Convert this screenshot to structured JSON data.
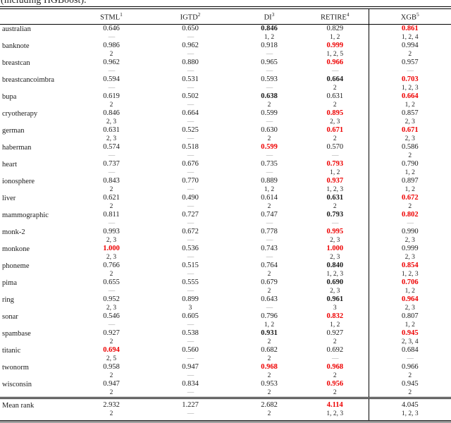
{
  "caption": "(including HGBoost).",
  "colors": {
    "highlight_red": "#ee0000",
    "dash_gray": "#999999"
  },
  "columns": [
    {
      "label": "STML",
      "sup": "1"
    },
    {
      "label": "IGTD",
      "sup": "2"
    },
    {
      "label": "DI",
      "sup": "3"
    },
    {
      "label": "RETIRE",
      "sup": "4"
    },
    {
      "label": "XGB",
      "sup": "5"
    }
  ],
  "rows": [
    {
      "name": "australian",
      "cells": [
        {
          "v": "0.646",
          "a": "—",
          "s": "n"
        },
        {
          "v": "0.650",
          "a": "—",
          "s": "n"
        },
        {
          "v": "0.846",
          "a": "1, 2",
          "s": "b"
        },
        {
          "v": "0.829",
          "a": "1, 2",
          "s": "n"
        },
        {
          "v": "0.861",
          "a": "1, 2, 4",
          "s": "r"
        }
      ]
    },
    {
      "name": "banknote",
      "cells": [
        {
          "v": "0.986",
          "a": "2",
          "s": "n"
        },
        {
          "v": "0.962",
          "a": "—",
          "s": "n"
        },
        {
          "v": "0.918",
          "a": "—",
          "s": "n"
        },
        {
          "v": "0.999",
          "a": "1, 2, 5",
          "s": "r"
        },
        {
          "v": "0.994",
          "a": "2",
          "s": "n"
        }
      ]
    },
    {
      "name": "breastcan",
      "cells": [
        {
          "v": "0.962",
          "a": "—",
          "s": "n"
        },
        {
          "v": "0.880",
          "a": "—",
          "s": "n"
        },
        {
          "v": "0.965",
          "a": "—",
          "s": "n"
        },
        {
          "v": "0.966",
          "a": "—",
          "s": "r"
        },
        {
          "v": "0.957",
          "a": "—",
          "s": "n"
        }
      ]
    },
    {
      "name": "breastcancoimbra",
      "cells": [
        {
          "v": "0.594",
          "a": "—",
          "s": "n"
        },
        {
          "v": "0.531",
          "a": "—",
          "s": "n"
        },
        {
          "v": "0.593",
          "a": "—",
          "s": "n"
        },
        {
          "v": "0.664",
          "a": "2",
          "s": "b"
        },
        {
          "v": "0.703",
          "a": "1, 2, 3",
          "s": "r"
        }
      ]
    },
    {
      "name": "bupa",
      "cells": [
        {
          "v": "0.619",
          "a": "2",
          "s": "n"
        },
        {
          "v": "0.502",
          "a": "—",
          "s": "n"
        },
        {
          "v": "0.638",
          "a": "2",
          "s": "b"
        },
        {
          "v": "0.631",
          "a": "2",
          "s": "n"
        },
        {
          "v": "0.664",
          "a": "1, 2",
          "s": "r"
        }
      ]
    },
    {
      "name": "cryotherapy",
      "cells": [
        {
          "v": "0.846",
          "a": "2, 3",
          "s": "n"
        },
        {
          "v": "0.664",
          "a": "—",
          "s": "n"
        },
        {
          "v": "0.599",
          "a": "—",
          "s": "n"
        },
        {
          "v": "0.895",
          "a": "2, 3",
          "s": "r"
        },
        {
          "v": "0.857",
          "a": "2, 3",
          "s": "n"
        }
      ]
    },
    {
      "name": "german",
      "cells": [
        {
          "v": "0.631",
          "a": "2, 3",
          "s": "n"
        },
        {
          "v": "0.525",
          "a": "—",
          "s": "n"
        },
        {
          "v": "0.630",
          "a": "2",
          "s": "n"
        },
        {
          "v": "0.671",
          "a": "2",
          "s": "r"
        },
        {
          "v": "0.671",
          "a": "2, 3",
          "s": "r"
        }
      ]
    },
    {
      "name": "haberman",
      "cells": [
        {
          "v": "0.574",
          "a": "—",
          "s": "n"
        },
        {
          "v": "0.518",
          "a": "—",
          "s": "n"
        },
        {
          "v": "0.599",
          "a": "—",
          "s": "r"
        },
        {
          "v": "0.570",
          "a": "—",
          "s": "n"
        },
        {
          "v": "0.586",
          "a": "2",
          "s": "n"
        }
      ]
    },
    {
      "name": "heart",
      "cells": [
        {
          "v": "0.737",
          "a": "—",
          "s": "n"
        },
        {
          "v": "0.676",
          "a": "—",
          "s": "n"
        },
        {
          "v": "0.735",
          "a": "—",
          "s": "n"
        },
        {
          "v": "0.793",
          "a": "1, 2",
          "s": "r"
        },
        {
          "v": "0.790",
          "a": "1, 2",
          "s": "n"
        }
      ]
    },
    {
      "name": "ionosphere",
      "cells": [
        {
          "v": "0.843",
          "a": "2",
          "s": "n"
        },
        {
          "v": "0.770",
          "a": "—",
          "s": "n"
        },
        {
          "v": "0.889",
          "a": "1, 2",
          "s": "n"
        },
        {
          "v": "0.937",
          "a": "1, 2, 3",
          "s": "r"
        },
        {
          "v": "0.897",
          "a": "1, 2",
          "s": "n"
        }
      ]
    },
    {
      "name": "liver",
      "cells": [
        {
          "v": "0.621",
          "a": "2",
          "s": "n"
        },
        {
          "v": "0.490",
          "a": "—",
          "s": "n"
        },
        {
          "v": "0.614",
          "a": "2",
          "s": "n"
        },
        {
          "v": "0.631",
          "a": "2",
          "s": "b"
        },
        {
          "v": "0.672",
          "a": "2",
          "s": "r"
        }
      ]
    },
    {
      "name": "mammographic",
      "cells": [
        {
          "v": "0.811",
          "a": "—",
          "s": "n"
        },
        {
          "v": "0.727",
          "a": "—",
          "s": "n"
        },
        {
          "v": "0.747",
          "a": "—",
          "s": "n"
        },
        {
          "v": "0.793",
          "a": "—",
          "s": "b"
        },
        {
          "v": "0.802",
          "a": "—",
          "s": "r"
        }
      ]
    },
    {
      "name": "monk-2",
      "cells": [
        {
          "v": "0.993",
          "a": "2, 3",
          "s": "n"
        },
        {
          "v": "0.672",
          "a": "—",
          "s": "n"
        },
        {
          "v": "0.778",
          "a": "—",
          "s": "n"
        },
        {
          "v": "0.995",
          "a": "2, 3",
          "s": "r"
        },
        {
          "v": "0.990",
          "a": "2, 3",
          "s": "n"
        }
      ]
    },
    {
      "name": "monkone",
      "cells": [
        {
          "v": "1.000",
          "a": "2, 3",
          "s": "r"
        },
        {
          "v": "0.536",
          "a": "—",
          "s": "n"
        },
        {
          "v": "0.743",
          "a": "—",
          "s": "n"
        },
        {
          "v": "1.000",
          "a": "2, 3",
          "s": "r"
        },
        {
          "v": "0.999",
          "a": "2, 3",
          "s": "n"
        }
      ]
    },
    {
      "name": "phoneme",
      "cells": [
        {
          "v": "0.766",
          "a": "2",
          "s": "n"
        },
        {
          "v": "0.515",
          "a": "—",
          "s": "n"
        },
        {
          "v": "0.764",
          "a": "2",
          "s": "n"
        },
        {
          "v": "0.840",
          "a": "1, 2, 3",
          "s": "b"
        },
        {
          "v": "0.854",
          "a": "1, 2, 3",
          "s": "r"
        }
      ]
    },
    {
      "name": "pima",
      "cells": [
        {
          "v": "0.655",
          "a": "—",
          "s": "n"
        },
        {
          "v": "0.555",
          "a": "—",
          "s": "n"
        },
        {
          "v": "0.679",
          "a": "2",
          "s": "n"
        },
        {
          "v": "0.690",
          "a": "2, 3",
          "s": "b"
        },
        {
          "v": "0.706",
          "a": "1, 2",
          "s": "r"
        }
      ]
    },
    {
      "name": "ring",
      "cells": [
        {
          "v": "0.952",
          "a": "2, 3",
          "s": "n"
        },
        {
          "v": "0.899",
          "a": "3",
          "s": "n"
        },
        {
          "v": "0.643",
          "a": "—",
          "s": "n"
        },
        {
          "v": "0.961",
          "a": "3",
          "s": "b"
        },
        {
          "v": "0.964",
          "a": "2, 3",
          "s": "r"
        }
      ]
    },
    {
      "name": "sonar",
      "cells": [
        {
          "v": "0.546",
          "a": "—",
          "s": "n"
        },
        {
          "v": "0.605",
          "a": "—",
          "s": "n"
        },
        {
          "v": "0.796",
          "a": "1, 2",
          "s": "n"
        },
        {
          "v": "0.832",
          "a": "1, 2",
          "s": "r"
        },
        {
          "v": "0.807",
          "a": "1, 2",
          "s": "n"
        }
      ]
    },
    {
      "name": "spambase",
      "cells": [
        {
          "v": "0.927",
          "a": "2",
          "s": "n"
        },
        {
          "v": "0.538",
          "a": "—",
          "s": "n"
        },
        {
          "v": "0.931",
          "a": "2",
          "s": "b"
        },
        {
          "v": "0.927",
          "a": "2",
          "s": "n"
        },
        {
          "v": "0.945",
          "a": "2, 3, 4",
          "s": "r"
        }
      ]
    },
    {
      "name": "titanic",
      "cells": [
        {
          "v": "0.694",
          "a": "2, 5",
          "s": "r"
        },
        {
          "v": "0.560",
          "a": "—",
          "s": "n"
        },
        {
          "v": "0.682",
          "a": "2",
          "s": "n"
        },
        {
          "v": "0.692",
          "a": "—",
          "s": "n"
        },
        {
          "v": "0.684",
          "a": "—",
          "s": "n"
        }
      ]
    },
    {
      "name": "twonorm",
      "cells": [
        {
          "v": "0.958",
          "a": "2",
          "s": "n"
        },
        {
          "v": "0.947",
          "a": "—",
          "s": "n"
        },
        {
          "v": "0.968",
          "a": "2",
          "s": "r"
        },
        {
          "v": "0.968",
          "a": "2",
          "s": "r"
        },
        {
          "v": "0.966",
          "a": "2",
          "s": "n"
        }
      ]
    },
    {
      "name": "wisconsin",
      "cells": [
        {
          "v": "0.947",
          "a": "2",
          "s": "n"
        },
        {
          "v": "0.834",
          "a": "—",
          "s": "n"
        },
        {
          "v": "0.953",
          "a": "2",
          "s": "n"
        },
        {
          "v": "0.956",
          "a": "2",
          "s": "r"
        },
        {
          "v": "0.945",
          "a": "2",
          "s": "n"
        }
      ]
    }
  ],
  "footer": {
    "name": "Mean rank",
    "cells": [
      {
        "v": "2.932",
        "a": "2",
        "s": "n"
      },
      {
        "v": "1.227",
        "a": "—",
        "s": "n"
      },
      {
        "v": "2.682",
        "a": "2",
        "s": "n"
      },
      {
        "v": "4.114",
        "a": "1, 2, 3",
        "s": "r"
      },
      {
        "v": "4.045",
        "a": "1, 2, 3",
        "s": "n"
      }
    ]
  }
}
